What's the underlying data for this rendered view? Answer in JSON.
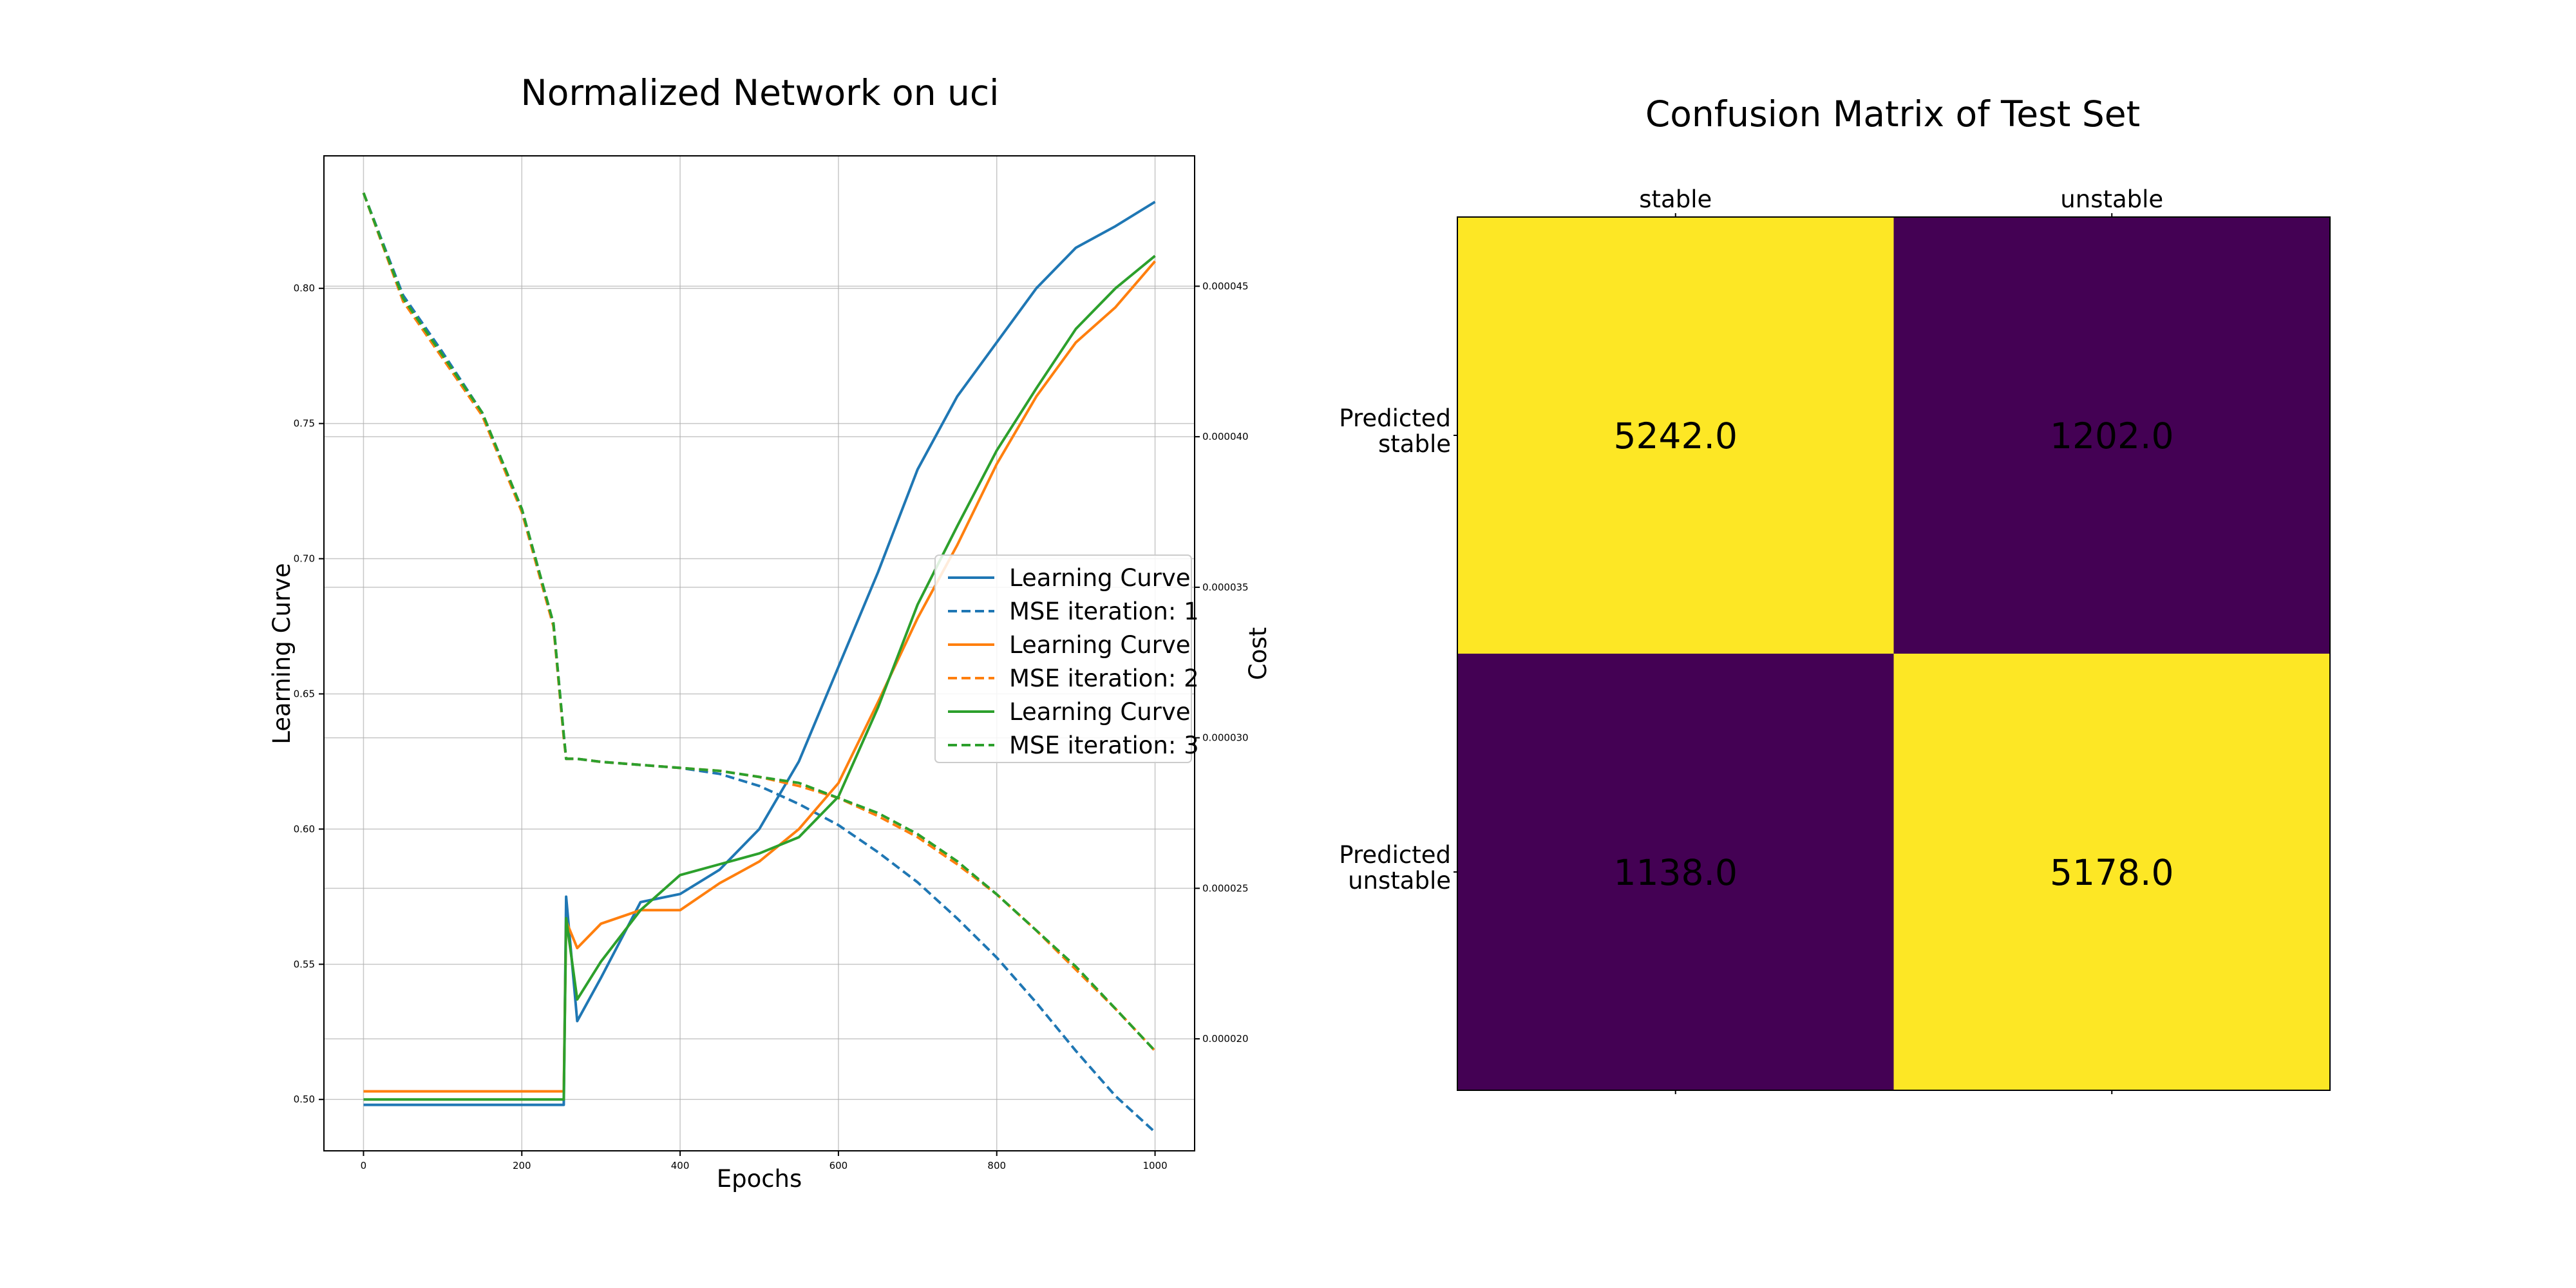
{
  "chart_data": [
    {
      "type": "line",
      "title": "Normalized Network on uci",
      "xlabel": "Epochs",
      "ylabel": "Learning Curve",
      "ylabel_right": "Cost",
      "xlim": [
        -50,
        1050
      ],
      "ylim": [
        0.481,
        0.849
      ],
      "ylim_right": [
        1.628e-05,
        4.933e-05
      ],
      "grid": true,
      "x_ticks": [
        0,
        200,
        400,
        600,
        800,
        1000
      ],
      "x_tick_labels": [
        "0",
        "200",
        "400",
        "600",
        "800",
        "1000"
      ],
      "y_ticks": [
        0.5,
        0.55,
        0.6,
        0.65,
        0.7,
        0.75,
        0.8
      ],
      "y_tick_labels": [
        "0.50",
        "0.55",
        "0.60",
        "0.65",
        "0.70",
        "0.75",
        "0.80"
      ],
      "y2_ticks": [
        2e-05,
        2.5e-05,
        3e-05,
        3.5e-05,
        4e-05,
        4.5e-05
      ],
      "y2_tick_labels": [
        "0.000020",
        "0.000025",
        "0.000030",
        "0.000035",
        "0.000040",
        "0.000045"
      ],
      "legend_position": "center-right",
      "x": [
        0,
        50,
        100,
        150,
        200,
        240,
        253,
        256,
        270,
        300,
        350,
        400,
        450,
        500,
        550,
        600,
        650,
        700,
        750,
        800,
        850,
        900,
        950,
        1000
      ],
      "series": [
        {
          "name": "Learning Curve",
          "axis": "left",
          "style": "solid",
          "color": "#1f77b4",
          "values": [
            0.498,
            0.498,
            0.498,
            0.498,
            0.498,
            0.498,
            0.498,
            0.575,
            0.529,
            0.545,
            0.573,
            0.576,
            0.585,
            0.6,
            0.625,
            0.66,
            0.695,
            0.733,
            0.76,
            0.78,
            0.8,
            0.815,
            0.823,
            0.832
          ]
        },
        {
          "name": "MSE iteration: 1",
          "axis": "right",
          "style": "dashed",
          "color": "#1f77b4",
          "values": [
            4.81e-05,
            4.47e-05,
            4.28e-05,
            4.08e-05,
            3.76e-05,
            3.38e-05,
            3.01e-05,
            2.93e-05,
            2.93e-05,
            2.92e-05,
            2.91e-05,
            2.9e-05,
            2.88e-05,
            2.84e-05,
            2.78e-05,
            2.71e-05,
            2.62e-05,
            2.52e-05,
            2.4e-05,
            2.27e-05,
            2.12e-05,
            1.96e-05,
            1.81e-05,
            1.69e-05
          ]
        },
        {
          "name": "Learning Curve",
          "axis": "left",
          "style": "solid",
          "color": "#ff7f0e",
          "values": [
            0.503,
            0.503,
            0.503,
            0.503,
            0.503,
            0.503,
            0.503,
            0.566,
            0.556,
            0.565,
            0.57,
            0.57,
            0.58,
            0.588,
            0.6,
            0.617,
            0.647,
            0.678,
            0.705,
            0.735,
            0.76,
            0.78,
            0.793,
            0.81
          ]
        },
        {
          "name": "MSE iteration: 2",
          "axis": "right",
          "style": "dashed",
          "color": "#ff7f0e",
          "values": [
            4.81e-05,
            4.45e-05,
            4.26e-05,
            4.07e-05,
            3.75e-05,
            3.37e-05,
            3e-05,
            2.93e-05,
            2.93e-05,
            2.92e-05,
            2.91e-05,
            2.9e-05,
            2.89e-05,
            2.87e-05,
            2.84e-05,
            2.8e-05,
            2.74e-05,
            2.67e-05,
            2.58e-05,
            2.48e-05,
            2.36e-05,
            2.23e-05,
            2.1e-05,
            1.96e-05
          ]
        },
        {
          "name": "Learning Curve",
          "axis": "left",
          "style": "solid",
          "color": "#2ca02c",
          "values": [
            0.5,
            0.5,
            0.5,
            0.5,
            0.5,
            0.5,
            0.5,
            0.567,
            0.537,
            0.551,
            0.57,
            0.583,
            0.587,
            0.591,
            0.597,
            0.612,
            0.645,
            0.683,
            0.712,
            0.74,
            0.763,
            0.785,
            0.8,
            0.812
          ]
        },
        {
          "name": "MSE iteration: 3",
          "axis": "right",
          "style": "dashed",
          "color": "#2ca02c",
          "values": [
            4.81e-05,
            4.46e-05,
            4.27e-05,
            4.08e-05,
            3.76e-05,
            3.38e-05,
            3.01e-05,
            2.93e-05,
            2.93e-05,
            2.92e-05,
            2.91e-05,
            2.9e-05,
            2.89e-05,
            2.87e-05,
            2.85e-05,
            2.8e-05,
            2.75e-05,
            2.68e-05,
            2.59e-05,
            2.48e-05,
            2.36e-05,
            2.24e-05,
            2.1e-05,
            1.96e-05
          ]
        }
      ]
    },
    {
      "type": "heatmap",
      "title": "Confusion Matrix of Test Set",
      "columns": [
        "stable",
        "unstable"
      ],
      "rows": [
        "Predicted\nstable",
        "Predicted\nunstable"
      ],
      "values": [
        [
          5242.0,
          1202.0
        ],
        [
          1138.0,
          5178.0
        ]
      ],
      "cell_labels": [
        [
          "5242.0",
          "1202.0"
        ],
        [
          "1138.0",
          "5178.0"
        ]
      ],
      "colors": {
        "high": "#fde725",
        "low": "#440154"
      }
    }
  ]
}
